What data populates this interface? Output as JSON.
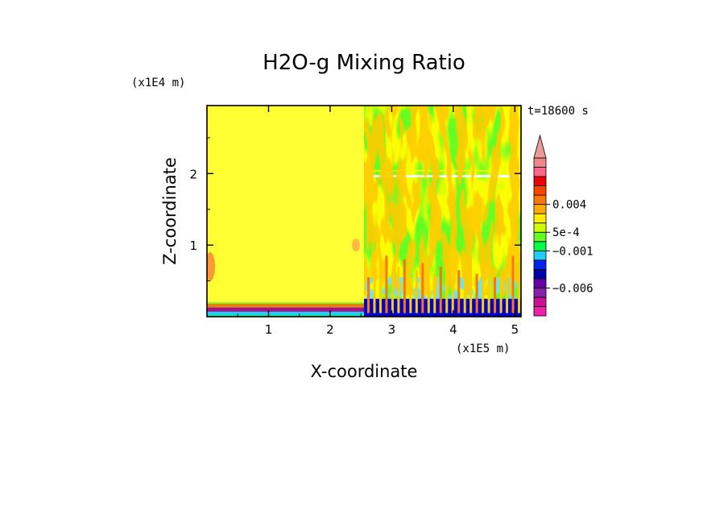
{
  "chart_data": {
    "type": "heatmap",
    "title": "H2O-g Mixing Ratio",
    "xlabel": "X-coordinate",
    "ylabel": "Z-coordinate",
    "x_scale_label": "(x1E5 m)",
    "y_scale_label": "(x1E4 m)",
    "time_label": "t=18600 s",
    "x_ticks": [
      "1",
      "2",
      "3",
      "4",
      "5"
    ],
    "x_tick_values": [
      1,
      2,
      3,
      4,
      5
    ],
    "y_ticks": [
      "1",
      "2"
    ],
    "y_tick_values": [
      1,
      2
    ],
    "xlim": [
      0,
      5.1
    ],
    "ylim": [
      0,
      2.95
    ],
    "legend_labels": [
      "0.004",
      "5e-4",
      "−0.001",
      "−0.006"
    ],
    "legend_label_levels": [
      0.004,
      0.0005,
      -0.001,
      -0.006
    ],
    "colorbar_colors": [
      "#ee22aa",
      "#cc1199",
      "#8822aa",
      "#6600aa",
      "#0000aa",
      "#0022ee",
      "#22ccff",
      "#00ff44",
      "#66ff22",
      "#ccff00",
      "#ffee00",
      "#ffaa00",
      "#ff7700",
      "#ff4400",
      "#ee0000",
      "#ff6688",
      "#ee8888"
    ],
    "colorbar_extend": "max",
    "regions": {
      "left_background": "#ffff33",
      "right_background": "#66ff22",
      "surface_layer": "#aa1188",
      "deep_negative": "#0000cc",
      "near_zero_positive": "#eeff00",
      "positive_plumes": "#ff9900",
      "light_negative": "#22ccff"
    }
  }
}
